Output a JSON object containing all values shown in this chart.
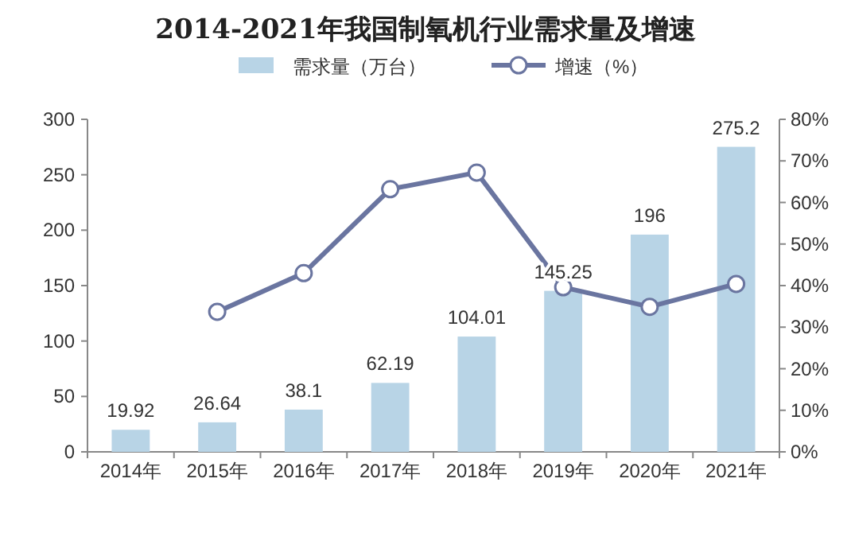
{
  "chart_data": {
    "type": "bar",
    "title": "2014-2021年我国制氧机行业需求量及增速",
    "categories": [
      "2014年",
      "2015年",
      "2016年",
      "2017年",
      "2018年",
      "2019年",
      "2020年",
      "2021年"
    ],
    "series": [
      {
        "name": "需求量（万台）",
        "color": "#b8d4e6",
        "values": [
          19.92,
          26.64,
          38.1,
          62.19,
          104.01,
          145.25,
          196,
          275.2
        ],
        "data_labels": true
      },
      {
        "name": "增速（%）",
        "type": "line",
        "axis": "y2",
        "color": "#6a75a0",
        "marker": "circle",
        "values": [
          null,
          33.7,
          43.0,
          63.2,
          67.2,
          39.6,
          34.9,
          40.4
        ]
      }
    ],
    "ylim": [
      0,
      300
    ],
    "yticks": [
      0,
      50,
      100,
      150,
      200,
      250,
      300
    ],
    "y2lim": [
      0,
      80
    ],
    "y2ticks": [
      {
        "value": 0,
        "label": "0%"
      },
      {
        "value": 10,
        "label": "10%"
      },
      {
        "value": 20,
        "label": "20%"
      },
      {
        "value": 30,
        "label": "30%"
      },
      {
        "value": 40,
        "label": "40%"
      },
      {
        "value": 50,
        "label": "50%"
      },
      {
        "value": 60,
        "label": "60%"
      },
      {
        "value": 70,
        "label": "70%"
      },
      {
        "value": 80,
        "label": "80%"
      }
    ],
    "legend": "top",
    "grid": false
  }
}
